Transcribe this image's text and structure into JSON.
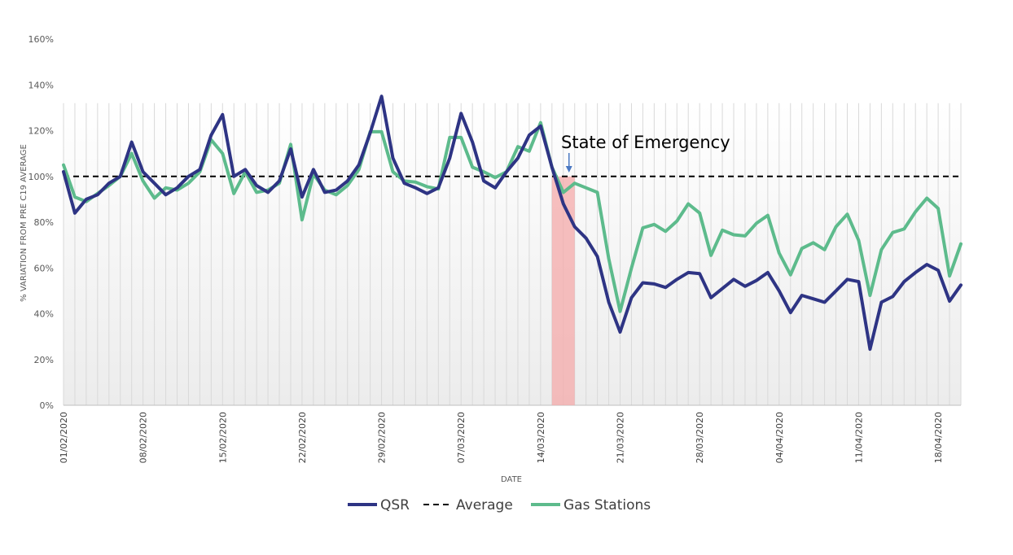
{
  "chart_data": {
    "type": "line",
    "xlabel": "DATE",
    "ylabel": "% VARIATION FROM PRE C19 AVERAGE",
    "ylim": [
      0,
      160
    ],
    "y_ticks": [
      "0%",
      "20%",
      "40%",
      "60%",
      "80%",
      "100%",
      "120%",
      "140%",
      "160%"
    ],
    "y_tick_values": [
      0,
      20,
      40,
      60,
      80,
      100,
      120,
      140,
      160
    ],
    "x_start": "2020-02-01",
    "x_ticks": [
      "01/02/2020",
      "08/02/2020",
      "15/02/2020",
      "22/02/2020",
      "29/02/2020",
      "07/03/2020",
      "14/03/2020",
      "21/03/2020",
      "28/03/2020",
      "04/04/2020",
      "11/04/2020",
      "18/04/2020"
    ],
    "x_tick_offsets": [
      0,
      7,
      14,
      21,
      28,
      35,
      42,
      49,
      56,
      63,
      70,
      77
    ],
    "grid": "vertical daily gridlines",
    "annotation": {
      "text": "State of Emergency",
      "band_start_day": 43,
      "band_end_day": 45,
      "arrow_day": 44.5,
      "band_color": "#f4a9a9"
    },
    "legend_position": "bottom",
    "series": [
      {
        "name": "QSR",
        "color": "#2e3484",
        "dash": "solid",
        "values": [
          102,
          84,
          90,
          92,
          97,
          100,
          115,
          102,
          97,
          92,
          95,
          100,
          103,
          118,
          127,
          100,
          103,
          96,
          93,
          98,
          112,
          91,
          103,
          93,
          94,
          98,
          105,
          119,
          135,
          108,
          97,
          95,
          92.5,
          95,
          108,
          127.5,
          115,
          98,
          95,
          102,
          108,
          118,
          122,
          104,
          88,
          78,
          73,
          65,
          45,
          32,
          47,
          53.5,
          53,
          51.5,
          55,
          58,
          57.5,
          47,
          51,
          55,
          52,
          54.5,
          58,
          50,
          40.5,
          48,
          46.5,
          45,
          50,
          55,
          54,
          24.5,
          45,
          47.5,
          54,
          58,
          61.5,
          59,
          45.5,
          52.5
        ]
      },
      {
        "name": "Average",
        "color": "#000000",
        "dash": "dashed",
        "values": [
          100,
          100
        ]
      },
      {
        "name": "Gas Stations",
        "color": "#5dbb8c",
        "dash": "solid",
        "values": [
          105,
          91,
          89,
          92.5,
          96,
          100,
          110,
          98,
          90.5,
          95,
          94,
          97,
          102,
          116,
          110,
          92.5,
          102,
          93,
          94,
          97,
          114,
          81,
          101,
          94,
          92,
          96,
          103,
          119.5,
          119.5,
          102,
          98,
          97.5,
          95.5,
          94.5,
          117,
          117,
          104,
          102,
          99.5,
          102,
          113,
          111,
          123.5,
          104,
          93,
          97,
          95,
          93,
          64,
          41,
          60,
          77.5,
          79,
          76,
          80.5,
          88,
          84,
          65.5,
          76.5,
          74.5,
          74,
          79.5,
          83,
          66.5,
          57,
          68.5,
          71,
          68,
          78,
          83.5,
          72,
          48,
          68,
          75.5,
          77,
          84.5,
          90.5,
          86,
          56.5,
          70.5
        ]
      }
    ]
  }
}
